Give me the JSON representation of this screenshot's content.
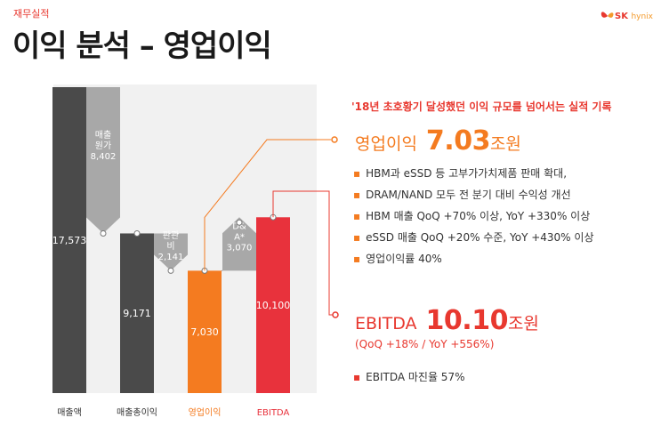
{
  "section": "재무실적",
  "title": "이익 분석 – 영업이익",
  "logo": {
    "sk": "SK",
    "hynix": "hynix",
    "color": "#e8382f",
    "accent": "#f39a2b"
  },
  "headline": "'18년 초호황기 달성했던 이익 규모를 넘어서는 실적 기록",
  "op_profit": {
    "label": "영업이익",
    "value": "7.03",
    "unit": "조원",
    "color": "#f47b20"
  },
  "op_bullets": [
    "HBM과 eSSD 등 고부가가치제품 판매 확대,",
    "DRAM/NAND 모두 전 분기 대비 수익성 개선",
    "HBM 매출 QoQ +70% 이상, YoY +330% 이상",
    "eSSD 매출 QoQ +20% 수준, YoY +430% 이상",
    "영업이익률 40%"
  ],
  "ebitda": {
    "label": "EBITDA",
    "value": "10.10",
    "unit": "조원",
    "growth": "(QoQ +18% / YoY +556%)",
    "color": "#e8382f"
  },
  "ebitda_bullets": [
    "EBITDA 마진율 57%"
  ],
  "chart_data": {
    "type": "bar",
    "subtype": "waterfall",
    "categories": [
      "매출액",
      "매출총이익",
      "영업이익",
      "EBITDA"
    ],
    "values": [
      17573,
      9171,
      7030,
      10100
    ],
    "labels": [
      "17,573",
      "9,171",
      "7,030",
      "10,100"
    ],
    "colors": [
      "#4a4a4a",
      "#4a4a4a",
      "#f47b20",
      "#e8323c"
    ],
    "steps": [
      {
        "label": "매출원가",
        "value": 8402,
        "text": "8,402",
        "from": 17573,
        "to": 9171
      },
      {
        "label": "판관비",
        "value": 2141,
        "text": "2,141",
        "from": 9171,
        "to": 7030
      },
      {
        "label": "D&A*",
        "value": 3070,
        "text": "3,070",
        "from": 7030,
        "to": 10100
      }
    ],
    "ylim": [
      0,
      17573
    ]
  }
}
